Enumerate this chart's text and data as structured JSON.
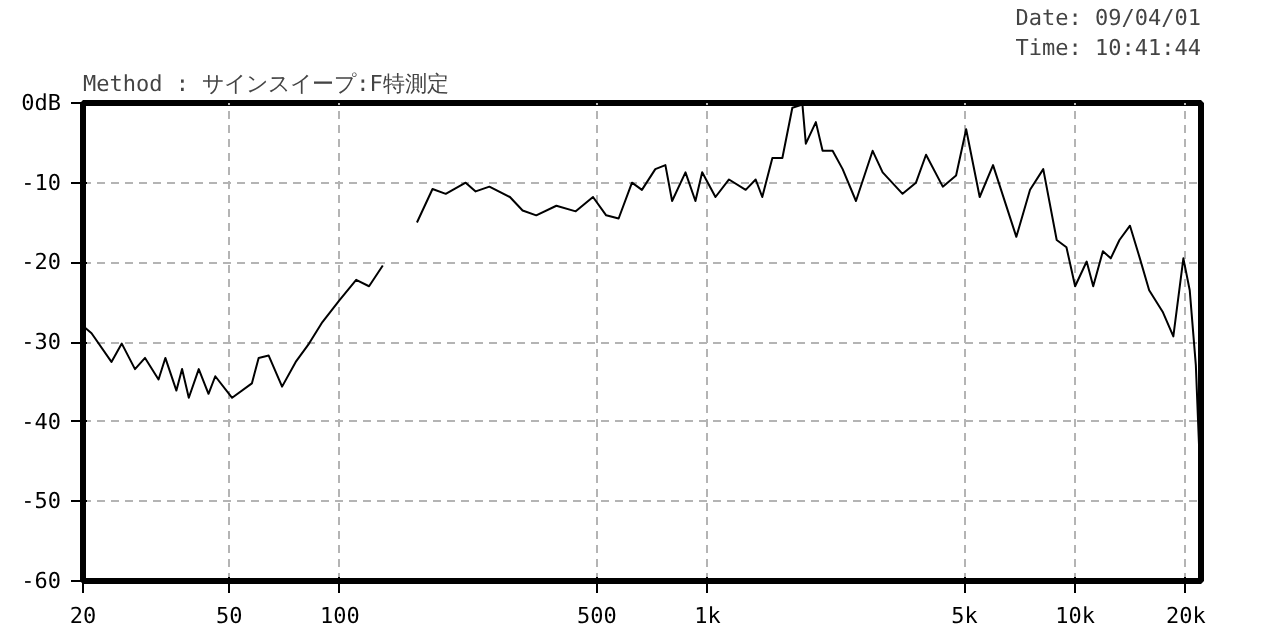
{
  "chart_data": {
    "type": "line",
    "title": "Method :  サインスイープ:F特測定",
    "annotations": [
      "Date: 09/04/01",
      "Time: 10:41:44"
    ],
    "log": "x",
    "grid": true,
    "marker": "none",
    "line_style": "solid",
    "xlim": [
      20,
      22000
    ],
    "xticks": [
      20,
      50,
      100,
      500,
      {
        "value": 1000,
        "label": "1k"
      },
      {
        "value": 5000,
        "label": "5k"
      },
      {
        "value": 10000,
        "label": "10k"
      },
      {
        "value": 20000,
        "label": "20k"
      }
    ],
    "ylim": [
      -60,
      0
    ],
    "yticks": [
      {
        "value": 0,
        "label": "0dB"
      },
      -10,
      -20,
      -30,
      -40,
      -50,
      -60
    ],
    "series": [
      {
        "color": "#000000",
        "x": [
          20,
          21.1,
          23.9,
          25.5,
          27.7,
          29.5,
          32.1,
          33.5,
          35.9,
          37.2,
          38.8,
          41.3,
          43.9,
          45.8,
          50.9,
          57.6,
          60.1,
          64,
          69.6,
          75.8,
          82.4,
          89.6,
          99.5,
          110.7,
          120,
          130.8,
          146,
          162,
          178.6,
          194,
          219.8,
          234,
          255,
          290,
          314,
          342,
          388,
          438,
          488,
          530,
          573,
          623,
          663,
          721,
          768,
          801,
          871,
          927,
          967,
          1051,
          1144,
          1270,
          1352,
          1409,
          1501,
          1598,
          1701,
          1812,
          1851,
          1971,
          2056,
          2189,
          2331,
          2534,
          2813,
          2995,
          3393,
          3690,
          3930,
          4365,
          4744,
          5053,
          5500,
          5980,
          6920,
          7540,
          8190,
          8910,
          9470,
          10000,
          10750,
          11200,
          11900,
          12500,
          13200,
          14100,
          15000,
          15900,
          17300,
          18500,
          19700,
          20500,
          21300,
          21800
        ],
        "values": [
          -28.0,
          -28.9,
          -32.5,
          -30.2,
          -33.4,
          -32.0,
          -34.7,
          -32.0,
          -36.1,
          -33.4,
          -37.0,
          -33.4,
          -36.5,
          -34.3,
          -37.0,
          -35.2,
          -32.0,
          -31.7,
          -35.6,
          -32.5,
          -30.2,
          -27.5,
          -24.8,
          -22.2,
          -23.0,
          -20.4,
          null,
          -15.0,
          -10.8,
          -11.4,
          -10.0,
          -11.1,
          -10.5,
          -11.8,
          -13.5,
          -14.1,
          -12.9,
          -13.6,
          -11.8,
          -14.1,
          -14.5,
          -10.0,
          -10.9,
          -8.3,
          -7.8,
          -12.3,
          -8.7,
          -12.3,
          -8.7,
          -11.8,
          -9.6,
          -10.9,
          -9.6,
          -11.8,
          -6.9,
          -6.9,
          -0.6,
          -0.2,
          -5.1,
          -2.4,
          -6.0,
          -6.0,
          -8.3,
          -12.3,
          -6.0,
          -8.7,
          -11.4,
          -10.0,
          -6.5,
          -10.5,
          -9.1,
          -3.3,
          -11.8,
          -7.8,
          -16.8,
          -10.9,
          -8.3,
          -17.2,
          -18.1,
          -23.0,
          -19.9,
          -23.0,
          -18.6,
          -19.5,
          -17.2,
          -15.4,
          -19.5,
          -23.5,
          -26.2,
          -29.3,
          -19.5,
          -23.5,
          -32.9,
          -44.6
        ]
      }
    ]
  }
}
